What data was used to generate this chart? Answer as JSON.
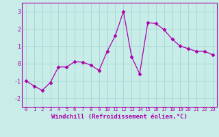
{
  "x": [
    0,
    1,
    2,
    3,
    4,
    5,
    6,
    7,
    8,
    9,
    10,
    11,
    12,
    13,
    14,
    15,
    16,
    17,
    18,
    19,
    20,
    21,
    22,
    23
  ],
  "y": [
    -1.0,
    -1.3,
    -1.55,
    -1.1,
    -0.2,
    -0.2,
    0.1,
    0.08,
    -0.1,
    -0.4,
    0.7,
    1.6,
    3.0,
    0.4,
    -0.6,
    2.35,
    2.3,
    1.95,
    1.4,
    1.0,
    0.85,
    0.7,
    0.7,
    0.5
  ],
  "line_color": "#aa00aa",
  "marker": "D",
  "marker_size": 2.5,
  "bg_color": "#c8ece8",
  "grid_color": "#aad8d4",
  "xlabel": "Windchill (Refroidissement éolien,°C)",
  "xlim": [
    -0.5,
    23.5
  ],
  "ylim": [
    -2.5,
    3.5
  ],
  "yticks": [
    -2,
    -1,
    0,
    1,
    2,
    3
  ],
  "xticks": [
    0,
    1,
    2,
    3,
    4,
    5,
    6,
    7,
    8,
    9,
    10,
    11,
    12,
    13,
    14,
    15,
    16,
    17,
    18,
    19,
    20,
    21,
    22,
    23
  ],
  "xlabel_fontsize": 6.5,
  "xtick_fontsize": 5.2,
  "ytick_fontsize": 6.0
}
